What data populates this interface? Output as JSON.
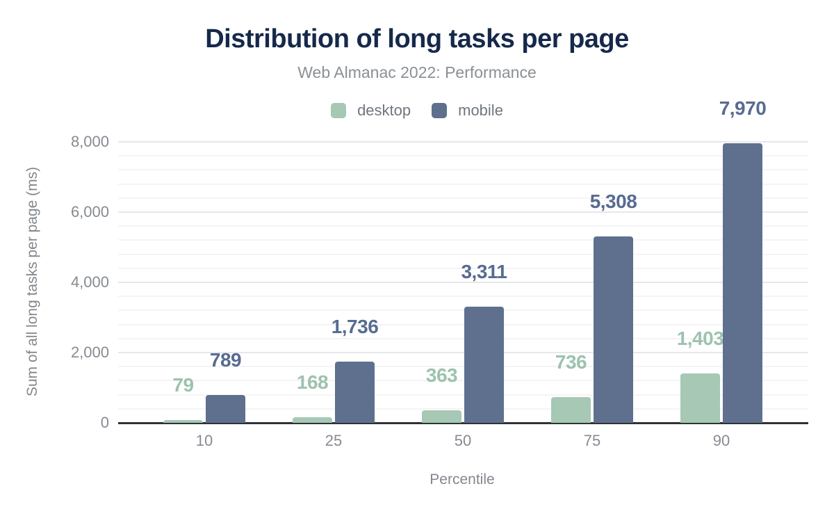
{
  "title": "Distribution of long tasks per page",
  "subtitle": "Web Almanac 2022: Performance",
  "legend": [
    {
      "label": "desktop"
    },
    {
      "label": "mobile"
    }
  ],
  "colors": {
    "background": "#ffffff",
    "title_text": "#16294b",
    "subtitle_text": "#8a9095",
    "legend_text": "#70767e",
    "axis_text": "#868b91",
    "grid_major": "#e6e7ea",
    "grid_minor": "#f4f4f6",
    "axis_line": "#2f3235",
    "desktop": "#a6c8b5",
    "mobile": "#5e708e"
  },
  "chart_data": {
    "type": "bar",
    "title": "Distribution of long tasks per page",
    "subtitle": "Web Almanac 2022: Performance",
    "categories": [
      "10",
      "25",
      "50",
      "75",
      "90"
    ],
    "series": [
      {
        "name": "desktop",
        "color": "#a6c8b5",
        "label_color": "#9dc2ae",
        "values": [
          79,
          168,
          363,
          736,
          1403
        ],
        "value_labels": [
          "79",
          "168",
          "363",
          "736",
          "1,403"
        ]
      },
      {
        "name": "mobile",
        "color": "#5e708e",
        "label_color": "#586b91",
        "values": [
          789,
          1736,
          3311,
          5308,
          7970
        ],
        "value_labels": [
          "789",
          "1,736",
          "3,311",
          "5,308",
          "7,970"
        ]
      }
    ],
    "xlabel": "Percentile",
    "ylabel": "Sum of all long tasks per page (ms)",
    "ylim": [
      0,
      8000
    ],
    "yticks": [
      0,
      2000,
      4000,
      6000,
      8000
    ],
    "ytick_labels": [
      "0",
      "2,000",
      "4,000",
      "6,000",
      "8,000"
    ],
    "minor_grid_step": 400,
    "grid": true,
    "legend_position": "top"
  }
}
